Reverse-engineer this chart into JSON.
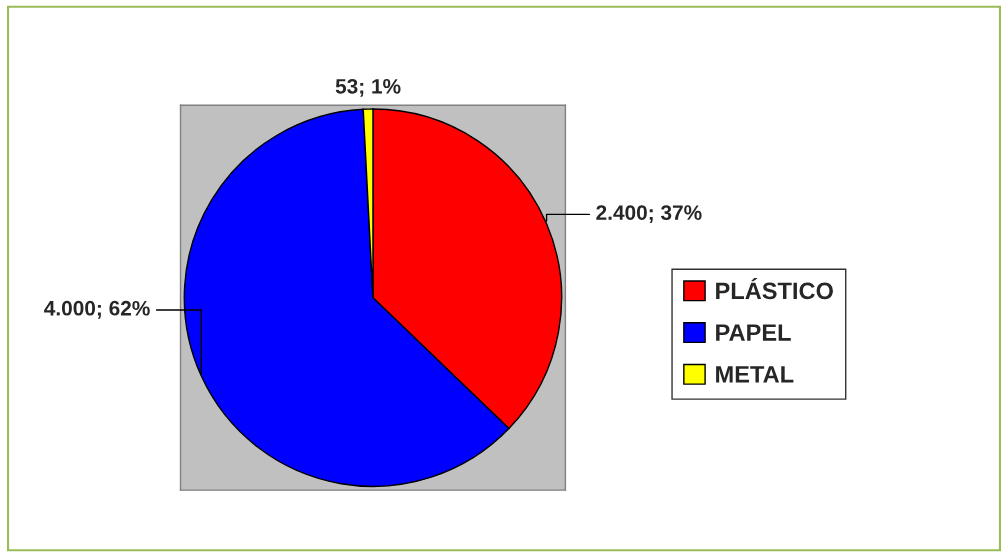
{
  "chart_data": {
    "type": "pie",
    "categories": [
      "PLÁSTICO",
      "PAPEL",
      "METAL"
    ],
    "values": [
      2400,
      4000,
      53
    ],
    "colors": [
      "#ff0000",
      "#0000ff",
      "#ffff00"
    ],
    "value_labels": [
      "2.400; 37%",
      "4.000; 62%",
      "53; 1%"
    ],
    "legend": "right"
  }
}
